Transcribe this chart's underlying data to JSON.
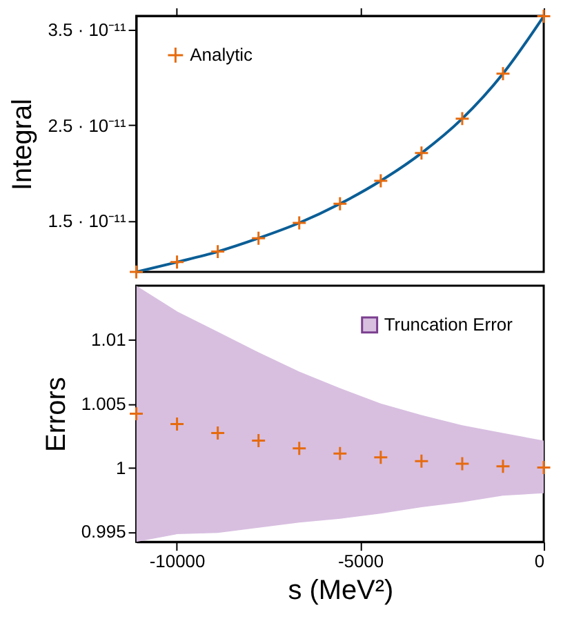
{
  "chart_data": [
    {
      "type": "line",
      "ylabel": "Integral",
      "x": [
        -11100,
        -9990,
        -8880,
        -7770,
        -6660,
        -5550,
        -4440,
        -3330,
        -2220,
        -1110,
        0
      ],
      "series": [
        {
          "color": "#0b5e96",
          "values": [
            9.67e-12,
            1.07e-11,
            1.18e-11,
            1.32e-11,
            1.48e-11,
            1.68e-11,
            1.92e-11,
            2.21e-11,
            2.57e-11,
            3.04e-11,
            3.64e-11
          ]
        },
        {
          "type": "scatter",
          "name": "Analytic",
          "color": "#e66b0e",
          "marker": "cross",
          "values": [
            9.67e-12,
            1.07e-11,
            1.18e-11,
            1.32e-11,
            1.48e-11,
            1.68e-11,
            1.92e-11,
            2.21e-11,
            2.57e-11,
            3.04e-11,
            3.64e-11
          ]
        }
      ],
      "xlim": [
        -11100,
        0
      ],
      "xticks": [
        {
          "value": -10000,
          "label": null
        },
        {
          "value": -5000,
          "label": null
        },
        {
          "value": 0,
          "label": null
        }
      ],
      "ylim": [
        9.67e-12,
        3.644e-11
      ],
      "yticks": [
        {
          "value": 1.5e-11,
          "label": "1.5 · 10⁻¹¹"
        },
        {
          "value": 2.5e-11,
          "label": "2.5 · 10⁻¹¹"
        },
        {
          "value": 3.5e-11,
          "label": "3.5 · 10⁻¹¹"
        }
      ],
      "tick_labels": "y",
      "grid": false,
      "legend": "top left"
    },
    {
      "type": "area",
      "xlabel": "s (MeV²)",
      "ylabel": "Errors",
      "x": [
        -11100,
        -9990,
        -8880,
        -7770,
        -6660,
        -5550,
        -4440,
        -3330,
        -2220,
        -1110,
        0
      ],
      "series": [
        {
          "type": "line",
          "name": "Truncation Error",
          "color": "#d8bfe0",
          "values": [
            null,
            null,
            null,
            null,
            null,
            null,
            null,
            null,
            null,
            null,
            null
          ],
          "lower": [
            0.9942,
            0.9948,
            0.9949,
            0.9953,
            0.9957,
            0.996,
            0.9964,
            0.9969,
            0.9973,
            0.9978,
            0.998
          ],
          "upper": [
            1.0142,
            1.0122,
            1.0106,
            1.009,
            1.0075,
            1.0062,
            1.005,
            1.0041,
            1.0033,
            1.0027,
            1.0021
          ]
        },
        {
          "type": "scatter",
          "color": "#e66b0e",
          "marker": "cross",
          "values": [
            1.0042,
            1.0034,
            1.0027,
            1.0021,
            1.0015,
            1.0011,
            1.0008,
            1.0005,
            1.0003,
            1.0001,
            1.0
          ]
        }
      ],
      "xlim": [
        -11100,
        0
      ],
      "xticks": [
        -10000,
        -5000,
        0
      ],
      "ylim": [
        0.9942,
        1.0142
      ],
      "yticks": [
        0.995,
        1,
        1.005,
        1.01
      ],
      "grid": false,
      "legend": "top right"
    }
  ]
}
